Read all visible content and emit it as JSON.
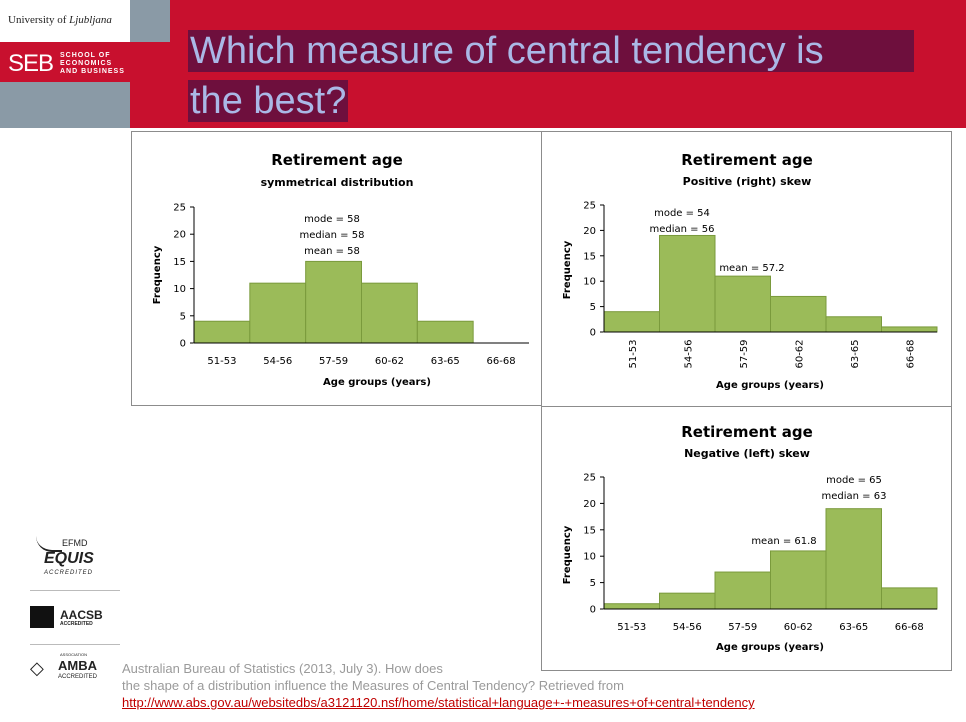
{
  "header": {
    "university_prefix": "University of ",
    "university_name": "Ljubljana",
    "school_abbr": "SEB",
    "school_line1": "SCHOOL OF",
    "school_line2": "ECONOMICS",
    "school_line3": "AND BUSINESS",
    "title_line1": "Which measure of central tendency is",
    "title_line2": "the best?"
  },
  "charts": [
    {
      "id": "symmetrical",
      "title": "Retirement age",
      "subtitle": "symmetrical distribution",
      "ylabel": "Frequency",
      "xlabel": "Age groups (years)",
      "annotations": [
        "mode = 58",
        "median = 58",
        "mean = 58"
      ]
    },
    {
      "id": "positive-skew",
      "title": "Retirement age",
      "subtitle": "Positive (right) skew",
      "ylabel": "Frequency",
      "xlabel": "Age groups (years)",
      "annotations": [
        "mode = 54",
        "median = 56",
        "mean = 57.2"
      ]
    },
    {
      "id": "negative-skew",
      "title": "Retirement age",
      "subtitle": "Negative (left) skew",
      "ylabel": "Frequency",
      "xlabel": "Age groups (years)",
      "annotations": [
        "mode = 65",
        "median = 63",
        "mean = 61.8"
      ]
    }
  ],
  "chart_data": [
    {
      "type": "bar",
      "title": "Retirement age",
      "subtitle": "symmetrical distribution",
      "xlabel": "Age groups (years)",
      "ylabel": "Frequency",
      "categories": [
        "51-53",
        "54-56",
        "57-59",
        "60-62",
        "63-65",
        "66-68"
      ],
      "values": [
        4,
        11,
        15,
        11,
        4,
        0
      ],
      "ylim": [
        0,
        25
      ],
      "yticks": [
        0,
        5,
        10,
        15,
        20,
        25
      ],
      "bar_color": "#9bbb59"
    },
    {
      "type": "bar",
      "title": "Retirement age",
      "subtitle": "Positive (right) skew",
      "xlabel": "Age groups (years)",
      "ylabel": "Frequency",
      "categories": [
        "51-53",
        "54-56",
        "57-59",
        "60-62",
        "63-65",
        "66-68"
      ],
      "values": [
        4,
        19,
        11,
        7,
        3,
        1
      ],
      "ylim": [
        0,
        25
      ],
      "yticks": [
        0,
        5,
        10,
        15,
        20,
        25
      ],
      "bar_color": "#9bbb59"
    },
    {
      "type": "bar",
      "title": "Retirement age",
      "subtitle": "Negative (left) skew",
      "xlabel": "Age groups (years)",
      "ylabel": "Frequency",
      "categories": [
        "51-53",
        "54-56",
        "57-59",
        "60-62",
        "63-65",
        "66-68"
      ],
      "values": [
        1,
        3,
        7,
        11,
        19,
        4
      ],
      "ylim": [
        0,
        25
      ],
      "yticks": [
        0,
        5,
        10,
        15,
        20,
        25
      ],
      "bar_color": "#9bbb59"
    }
  ],
  "logos": {
    "efmd": "EFMD",
    "equis": "EQUIS",
    "equis_accredited": "ACCREDITED",
    "aacsb": "AACSB",
    "aacsb_accredited": "ACCREDITED",
    "amba_association": "ASSOCIATION",
    "amba": "AMBA",
    "amba_accredited": "ACCREDITED"
  },
  "citation": {
    "text_line1": "Australian Bureau of Statistics (2013, July 3). How does",
    "text_line2": "the shape of a distribution influence the Measures of Central Tendency? Retrieved from",
    "url": "http://www.abs.gov.au/websitedbs/a3121120.nsf/home/statistical+language+-+measures+of+central+tendency"
  }
}
